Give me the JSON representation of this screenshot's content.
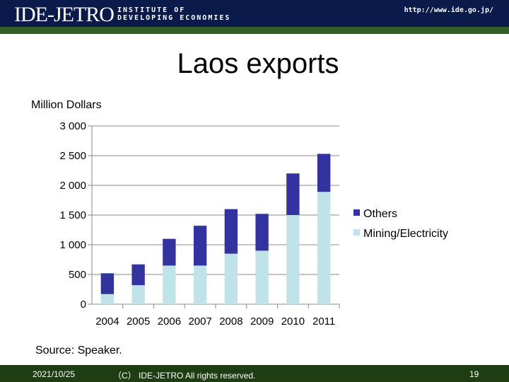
{
  "header": {
    "logo": "IDE-JETRO",
    "institute_line1": "INSTITUTE OF",
    "institute_line2": "DEVELOPING ECONOMIES",
    "url": "http://www.ide.go.jp/"
  },
  "slide": {
    "title": "Laos exports",
    "source": "Source: Speaker."
  },
  "footer": {
    "date": "2021/10/25",
    "copyright": "（C） IDE-JETRO All rights reserved.",
    "page": "19"
  },
  "colors": {
    "others": "#3333a0",
    "mining": "#bfe3e8",
    "header_bg": "#0a1a4a",
    "header_stripe": "#2f5f24",
    "footer_bg": "#1f3d12"
  },
  "chart_data": {
    "type": "bar",
    "stacked": true,
    "ylabel": "Million Dollars",
    "ylim": [
      0,
      3000
    ],
    "yticks": [
      0,
      500,
      1000,
      1500,
      2000,
      2500,
      3000
    ],
    "ytick_labels": [
      "0",
      "500",
      "1 000",
      "1 500",
      "2 000",
      "2 500",
      "3 000"
    ],
    "categories": [
      "2004",
      "2005",
      "2006",
      "2007",
      "2008",
      "2009",
      "2010",
      "2011"
    ],
    "series": [
      {
        "name": "Mining/Electricity",
        "values": [
          170,
          320,
          650,
          650,
          850,
          900,
          1500,
          1890
        ]
      },
      {
        "name": "Others",
        "values": [
          350,
          350,
          450,
          670,
          750,
          620,
          700,
          640
        ]
      }
    ],
    "legend": [
      "Others",
      "Mining/Electricity"
    ],
    "legend_position": "right",
    "grid": true
  }
}
